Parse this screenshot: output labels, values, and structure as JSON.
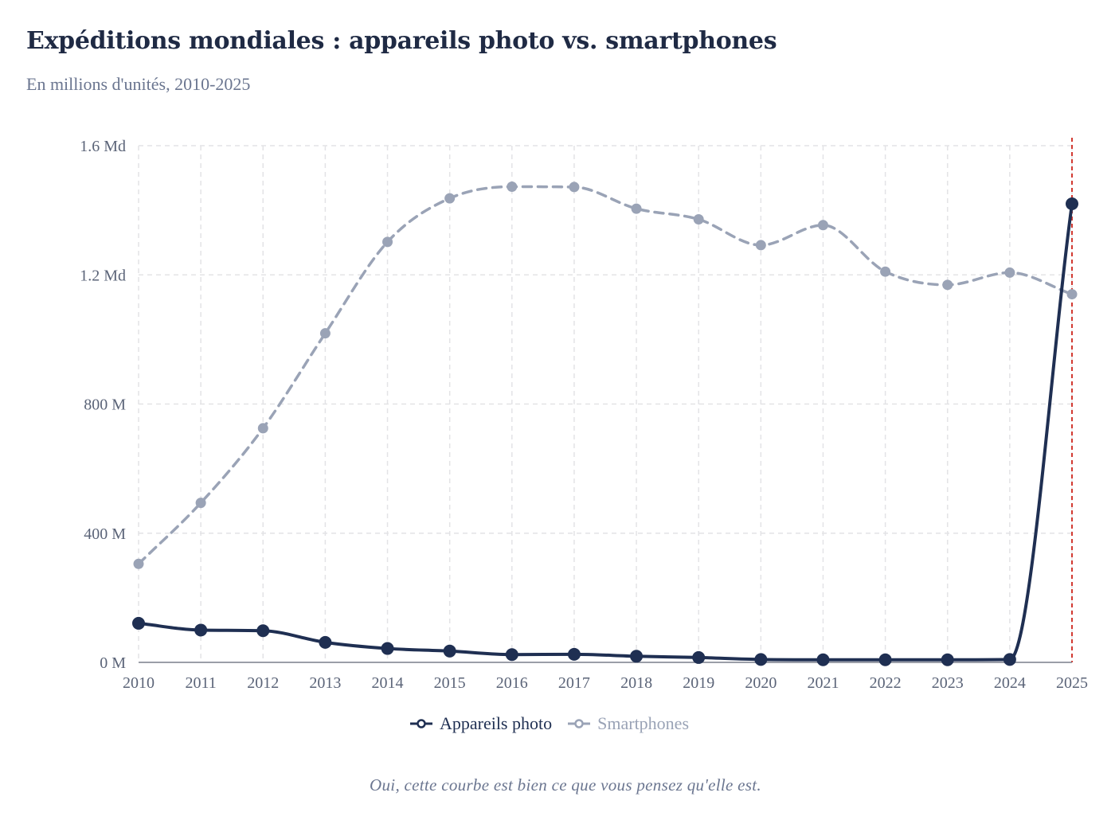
{
  "title": "Expéditions mondiales : appareils photo vs. smartphones",
  "subtitle": "En millions d'unités, 2010-2025",
  "footnote": "Oui, cette courbe est bien ce que vous pensez qu'elle est.",
  "colors": {
    "cameras": "#1f2f52",
    "smartphones": "#9aa3b6",
    "grid": "#e3e3e6",
    "axis": "#7a7f8c",
    "marker_line": "#d23a32"
  },
  "chart_data": {
    "type": "line",
    "title": "Expéditions mondiales : appareils photo vs. smartphones",
    "subtitle": "En millions d'unités, 2010-2025",
    "xlabel": "",
    "ylabel": "",
    "x": [
      2010,
      2011,
      2012,
      2013,
      2014,
      2015,
      2016,
      2017,
      2018,
      2019,
      2020,
      2021,
      2022,
      2023,
      2024,
      2025
    ],
    "ylim": [
      0,
      1600
    ],
    "yticks": [
      {
        "value": 0,
        "label": "0 M"
      },
      {
        "value": 400,
        "label": "400 M"
      },
      {
        "value": 800,
        "label": "800 M"
      },
      {
        "value": 1200,
        "label": "1.2 Md"
      },
      {
        "value": 1600,
        "label": "1.6 Md"
      }
    ],
    "grid": true,
    "legend_position": "bottom-center",
    "highlight_x": 2025,
    "series": [
      {
        "name": "Appareils photo",
        "style": "solid",
        "values": [
          121,
          100,
          98,
          62,
          43,
          35,
          24,
          25,
          19,
          15,
          9,
          8,
          8,
          8,
          9,
          1420
        ]
      },
      {
        "name": "Smartphones",
        "style": "dashed",
        "values": [
          305,
          494,
          725,
          1019,
          1302,
          1437,
          1473,
          1472,
          1405,
          1372,
          1292,
          1354,
          1210,
          1169,
          1207,
          1140
        ]
      }
    ]
  }
}
